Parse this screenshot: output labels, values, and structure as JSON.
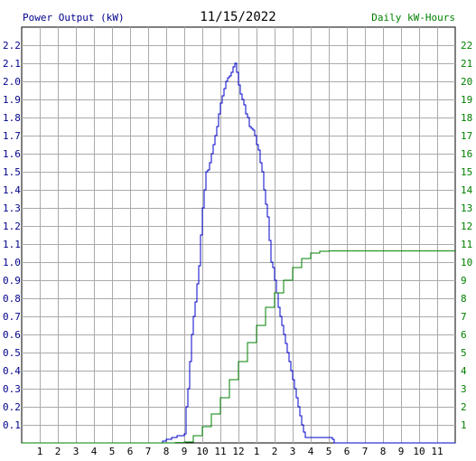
{
  "chart_data": {
    "type": "line",
    "title": "11/15/2022",
    "left_axis_label": "Power Output (kW)",
    "right_axis_label": "Daily kW-Hours",
    "left_axis_color": "#00008b",
    "right_axis_color": "#008000",
    "x_tick_labels": [
      "1",
      "2",
      "3",
      "4",
      "5",
      "6",
      "7",
      "8",
      "9",
      "10",
      "11",
      "12",
      "1",
      "2",
      "3",
      "4",
      "5",
      "6",
      "7",
      "8",
      "9",
      "10",
      "11"
    ],
    "xlim": [
      0,
      24
    ],
    "left_ylim": [
      0,
      2.3
    ],
    "right_ylim": [
      0,
      23
    ],
    "left_ticks": [
      "0.1",
      "0.2",
      "0.3",
      "0.4",
      "0.5",
      "0.6",
      "0.7",
      "0.8",
      "0.9",
      "1.0",
      "1.1",
      "1.2",
      "1.3",
      "1.4",
      "1.5",
      "1.6",
      "1.7",
      "1.8",
      "1.9",
      "2.0",
      "2.1",
      "2.2"
    ],
    "right_ticks": [
      "1",
      "2",
      "3",
      "4",
      "5",
      "6",
      "7",
      "8",
      "9",
      "10",
      "11",
      "12",
      "13",
      "14",
      "15",
      "16",
      "17",
      "18",
      "19",
      "20",
      "21",
      "22"
    ],
    "grid": true,
    "series": [
      {
        "name": "Power Output (kW)",
        "axis": "left",
        "color": "#0000cc",
        "x": [
          0,
          7.6,
          7.8,
          8.0,
          8.3,
          8.6,
          9.0,
          9.1,
          9.2,
          9.3,
          9.4,
          9.5,
          9.6,
          9.7,
          9.8,
          9.9,
          10.0,
          10.1,
          10.2,
          10.3,
          10.4,
          10.5,
          10.6,
          10.7,
          10.8,
          10.9,
          11.0,
          11.1,
          11.2,
          11.3,
          11.4,
          11.5,
          11.6,
          11.7,
          11.8,
          11.9,
          12.0,
          12.1,
          12.2,
          12.3,
          12.4,
          12.5,
          12.6,
          12.7,
          12.8,
          12.9,
          13.0,
          13.1,
          13.2,
          13.3,
          13.4,
          13.5,
          13.6,
          13.7,
          13.8,
          13.9,
          14.0,
          14.1,
          14.2,
          14.3,
          14.4,
          14.5,
          14.6,
          14.7,
          14.8,
          14.9,
          15.0,
          15.1,
          15.2,
          15.3,
          15.4,
          15.5,
          15.6,
          15.7,
          15.8,
          15.9,
          16.0,
          16.1,
          16.2,
          16.3,
          16.4,
          16.5,
          16.6,
          16.7,
          16.8,
          17.0,
          17.2,
          17.3,
          24
        ],
        "y": [
          0,
          0,
          0.01,
          0.02,
          0.03,
          0.04,
          0.05,
          0.2,
          0.3,
          0.45,
          0.6,
          0.7,
          0.78,
          0.88,
          0.98,
          1.15,
          1.3,
          1.4,
          1.5,
          1.51,
          1.55,
          1.6,
          1.65,
          1.7,
          1.75,
          1.82,
          1.88,
          1.92,
          1.96,
          2.0,
          2.02,
          2.03,
          2.05,
          2.08,
          2.1,
          2.05,
          1.98,
          1.93,
          1.9,
          1.87,
          1.82,
          1.8,
          1.75,
          1.74,
          1.73,
          1.7,
          1.65,
          1.62,
          1.55,
          1.5,
          1.4,
          1.32,
          1.25,
          1.12,
          1.0,
          0.97,
          0.9,
          0.83,
          0.75,
          0.7,
          0.65,
          0.6,
          0.55,
          0.5,
          0.45,
          0.4,
          0.35,
          0.3,
          0.25,
          0.2,
          0.15,
          0.1,
          0.06,
          0.03,
          0.03,
          0.03,
          0.03,
          0.03,
          0.03,
          0.03,
          0.03,
          0.03,
          0.03,
          0.03,
          0.03,
          0.03,
          0.02,
          0.0,
          0
        ]
      },
      {
        "name": "Daily kW-Hours",
        "axis": "right",
        "color": "#008000",
        "x": [
          0,
          7.6,
          8.5,
          9.0,
          9.5,
          10.0,
          10.5,
          11.0,
          11.5,
          12.0,
          12.5,
          13.0,
          13.5,
          14.0,
          14.5,
          15.0,
          15.5,
          16.0,
          16.5,
          17.0,
          17.5,
          18.0,
          24
        ],
        "y": [
          0,
          0,
          0.02,
          0.05,
          0.4,
          0.9,
          1.6,
          2.5,
          3.5,
          4.5,
          5.55,
          6.5,
          7.5,
          8.3,
          9.0,
          9.7,
          10.2,
          10.5,
          10.6,
          10.62,
          10.62,
          10.62,
          10.62
        ]
      }
    ]
  }
}
